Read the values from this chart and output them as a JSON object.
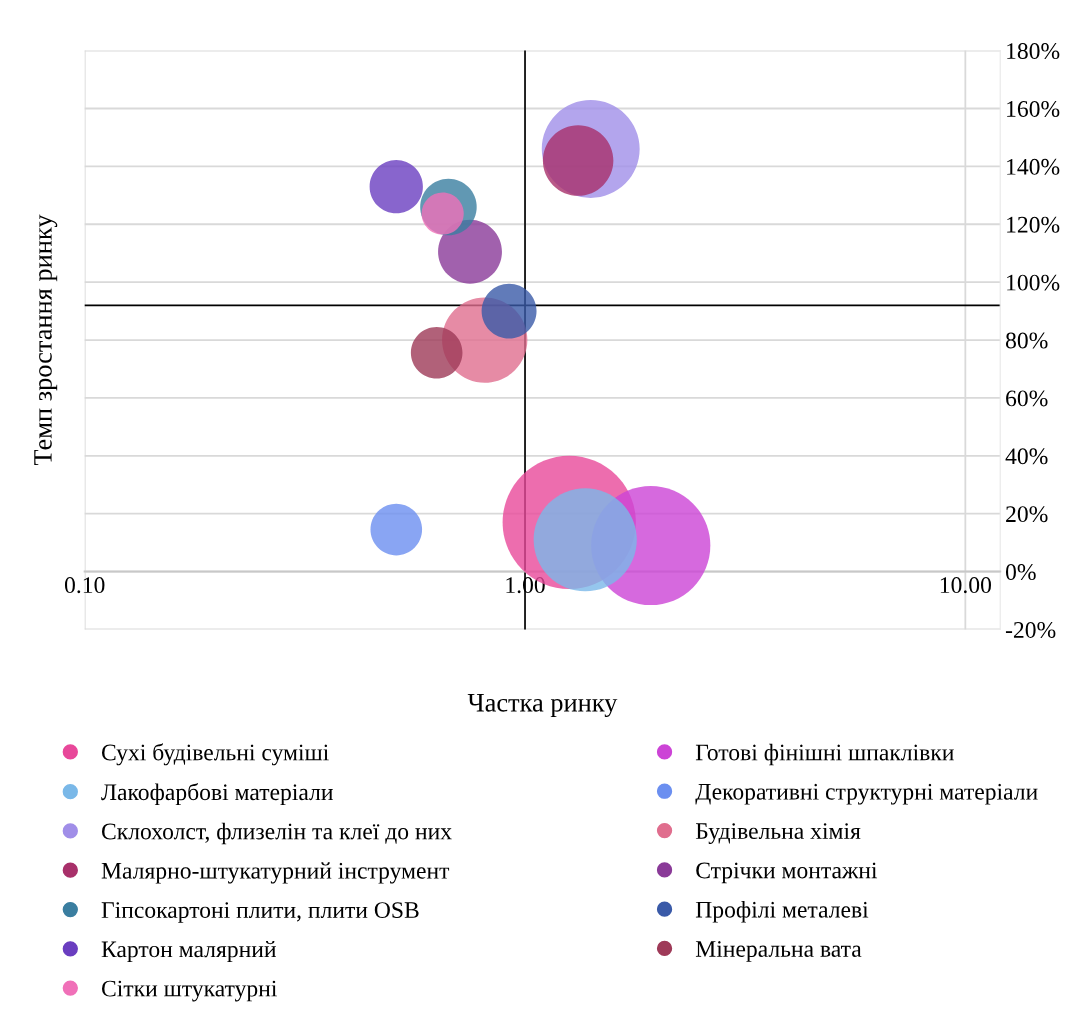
{
  "chart_data": {
    "type": "bubble",
    "xlabel": "Частка ринку",
    "ylabel": "Темп зростання ринку",
    "log": "x",
    "xlim": [
      0.1,
      12
    ],
    "xticks": [
      {
        "value": 0.1,
        "label": "0.10"
      },
      {
        "value": 1,
        "label": "1.00"
      },
      {
        "value": 10,
        "label": "10.00"
      }
    ],
    "ylim": [
      -20,
      180
    ],
    "yticks": [
      {
        "value": -20,
        "label": "-20%"
      },
      {
        "value": 0,
        "label": "0%"
      },
      {
        "value": 20,
        "label": "20%"
      },
      {
        "value": 40,
        "label": "40%"
      },
      {
        "value": 60,
        "label": "60%"
      },
      {
        "value": 80,
        "label": "80%"
      },
      {
        "value": 100,
        "label": "100%"
      },
      {
        "value": 120,
        "label": "120%"
      },
      {
        "value": 140,
        "label": "140%"
      },
      {
        "value": 160,
        "label": "160%"
      },
      {
        "value": 180,
        "label": "180%"
      }
    ],
    "grid": true,
    "legend": "bottom",
    "ref_lines": [
      {
        "axis": "x",
        "value": 1,
        "color": "#000000"
      },
      {
        "axis": "y",
        "value": 92,
        "color": "#000000"
      }
    ],
    "series": [
      {
        "name": "Сухі будівельні суміші",
        "color": "#e8489a",
        "x": [
          1.26
        ],
        "values": [
          17
        ],
        "sizes": [
          1
        ]
      },
      {
        "name": "Готові фінішні шпаклівки",
        "color": "#cc44d6",
        "x": [
          1.93
        ],
        "values": [
          9
        ],
        "sizes": [
          0.8
        ]
      },
      {
        "name": "Лакофарбові матеріали",
        "color": "#7ab8e8",
        "x": [
          1.37
        ],
        "values": [
          11
        ],
        "sizes": [
          0.6
        ]
      },
      {
        "name": "Декоративні структурні матеріали",
        "color": "#6b8ff0",
        "x": [
          0.51
        ],
        "values": [
          14.5
        ],
        "sizes": [
          0.15
        ]
      },
      {
        "name": "Склохолст, флизелін та клеї до них",
        "color": "#a08ee8",
        "x": [
          1.41
        ],
        "values": [
          146
        ],
        "sizes": [
          0.54
        ]
      },
      {
        "name": "Будівельна хімія",
        "color": "#e06e8e",
        "x": [
          0.81
        ],
        "values": [
          80
        ],
        "sizes": [
          0.41
        ]
      },
      {
        "name": "Малярно-штукатурний інструмент",
        "color": "#a8306a",
        "x": [
          1.32
        ],
        "values": [
          142
        ],
        "sizes": [
          0.28
        ]
      },
      {
        "name": "Стрічки монтажні",
        "color": "#8a3a98",
        "x": [
          0.75
        ],
        "values": [
          110.5
        ],
        "sizes": [
          0.23
        ]
      },
      {
        "name": "Гіпсокартоні плити, плити OSB",
        "color": "#3a7ea0",
        "x": [
          0.67
        ],
        "values": [
          126
        ],
        "sizes": [
          0.18
        ]
      },
      {
        "name": "Профілі металеві",
        "color": "#3a5aa8",
        "x": [
          0.92
        ],
        "values": [
          90
        ],
        "sizes": [
          0.17
        ]
      },
      {
        "name": "Картон малярний",
        "color": "#6a3ec0",
        "x": [
          0.51
        ],
        "values": [
          133
        ],
        "sizes": [
          0.16
        ]
      },
      {
        "name": "Мінеральна вата",
        "color": "#9e3a58",
        "x": [
          0.63
        ],
        "values": [
          75.6
        ],
        "sizes": [
          0.15
        ]
      },
      {
        "name": "Сітки штукатурні",
        "color": "#f070b8",
        "x": [
          0.65
        ],
        "values": [
          123.7
        ],
        "sizes": [
          0.1
        ]
      }
    ]
  }
}
